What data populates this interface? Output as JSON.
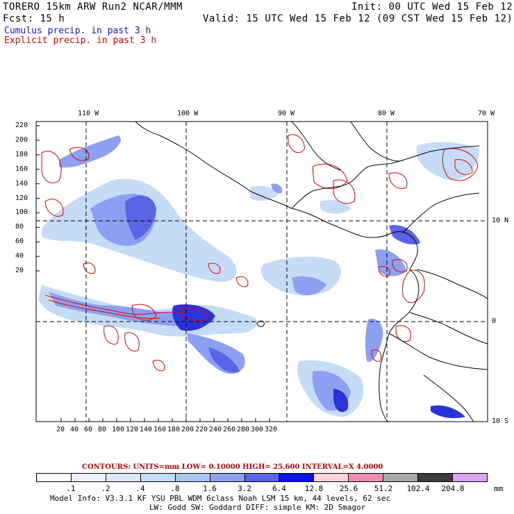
{
  "header": {
    "title_left": "TORERO  15km ARW   Run2    NCAR/MMM",
    "init": "Init: 00 UTC Wed 15 Feb 12",
    "fcst": "Fcst:   15 h",
    "valid": "Valid: 15 UTC Wed 15 Feb 12 (09 CST Wed 15 Feb 12)",
    "legend_cumulus": "Cumulus precip. in past 3 h",
    "legend_explicit": "Explicit precip. in past 3 h"
  },
  "axes": {
    "top_lon": [
      "110 W",
      "100 W",
      "90 W",
      "80 W",
      "70 W"
    ],
    "left_y": [
      "220",
      "200",
      "180",
      "160",
      "140",
      "120",
      "100",
      "80",
      "60",
      "40",
      "20"
    ],
    "bottom_x": [
      "20",
      "40",
      "60",
      "80",
      "100",
      "120",
      "140",
      "160",
      "180",
      "200",
      "220",
      "240",
      "260",
      "280",
      "300",
      "320"
    ],
    "right_lat": [
      "10 N",
      "0",
      "10 S"
    ]
  },
  "contours_info": {
    "line": "CONTOURS:  UNITS=mm  LOW= 0.10000      HIGH=  25.600      INTERVAL=X  4.0000"
  },
  "colorbar": {
    "colors": [
      "#ffffff",
      "#eef4ff",
      "#dde9fb",
      "#c6dcf6",
      "#a9c5f0",
      "#8d9ff0",
      "#5a64e6",
      "#0a14e6",
      "#fbd5d8",
      "#f08cb4",
      "#a8a8a8",
      "#3c3c3c",
      "#d9a6f2"
    ],
    "ticks": [
      ".1",
      ".2",
      ".4",
      ".8",
      "1.6",
      "3.2",
      "6.4",
      "12.8",
      "25.6",
      "51.2",
      "102.4",
      "204.8"
    ],
    "units": "mm"
  },
  "model_info": {
    "line1": "Model Info: V3.3.1   KF    YSU PBL  WDM 6class  Noah LSM  15 km,   44 levels,   62 sec",
    "line2": "LW: Godd SW: Goddard DIFF: simple KM: 2D Smagor"
  },
  "map_colors": {
    "cumulus_light": "#c6dcf6",
    "cumulus_mid": "#8d9ff0",
    "cumulus_dark": "#2a32d8",
    "explicit": "#e00000",
    "coast": "#000000"
  }
}
